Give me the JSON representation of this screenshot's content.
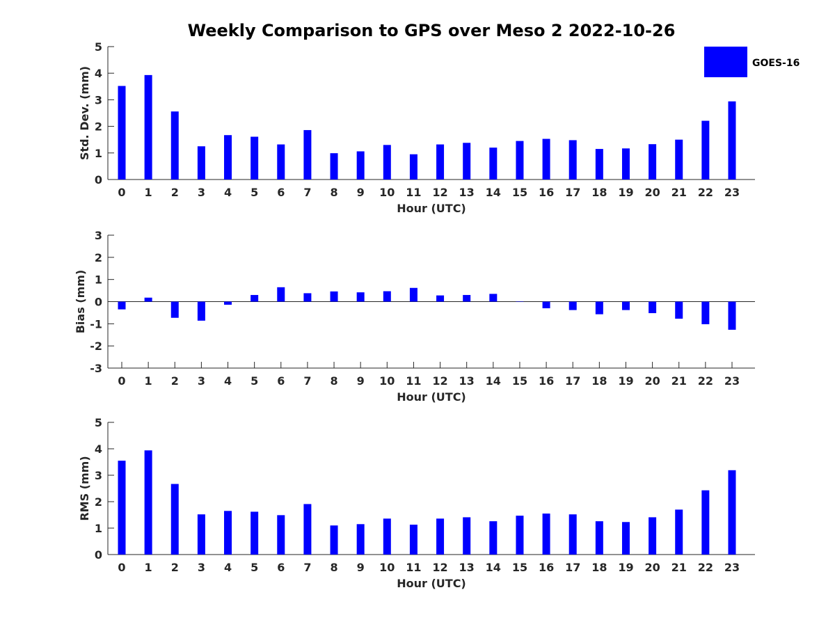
{
  "figure": {
    "title": "Weekly Comparison to GPS over Meso 2 2022-10-26"
  },
  "legend": {
    "label": "GOES-16",
    "placement": "top-right"
  },
  "colors": {
    "bar": "#0000ff",
    "axis": "#262626",
    "text": "#262626",
    "background": "#ffffff"
  },
  "chart_data": [
    {
      "type": "bar",
      "ylabel": "Std. Dev. (mm)",
      "xlabel": "Hour (UTC)",
      "ylim": [
        0,
        5
      ],
      "yticks": [
        "0",
        "1",
        "2",
        "3",
        "4",
        "5"
      ],
      "categories": [
        "0",
        "1",
        "2",
        "3",
        "4",
        "5",
        "6",
        "7",
        "8",
        "9",
        "10",
        "11",
        "12",
        "13",
        "14",
        "15",
        "16",
        "17",
        "18",
        "19",
        "20",
        "21",
        "22",
        "23"
      ],
      "series": [
        {
          "name": "GOES-16",
          "values": [
            3.52,
            3.93,
            2.56,
            1.25,
            1.67,
            1.61,
            1.32,
            1.86,
            0.99,
            1.06,
            1.3,
            0.95,
            1.32,
            1.38,
            1.2,
            1.45,
            1.53,
            1.48,
            1.15,
            1.17,
            1.33,
            1.5,
            2.21,
            2.94
          ]
        }
      ]
    },
    {
      "type": "bar",
      "ylabel": "Bias (mm)",
      "xlabel": "Hour (UTC)",
      "ylim": [
        -3,
        3
      ],
      "yticks": [
        "-3",
        "-2",
        "-1",
        "0",
        "1",
        "2",
        "3"
      ],
      "categories": [
        "0",
        "1",
        "2",
        "3",
        "4",
        "5",
        "6",
        "7",
        "8",
        "9",
        "10",
        "11",
        "12",
        "13",
        "14",
        "15",
        "16",
        "17",
        "18",
        "19",
        "20",
        "21",
        "22",
        "23"
      ],
      "series": [
        {
          "name": "GOES-16",
          "values": [
            -0.35,
            0.18,
            -0.73,
            -0.86,
            -0.14,
            0.3,
            0.65,
            0.38,
            0.46,
            0.42,
            0.47,
            0.62,
            0.28,
            0.3,
            0.35,
            0.0,
            -0.3,
            -0.38,
            -0.57,
            -0.38,
            -0.52,
            -0.77,
            -1.02,
            -1.27
          ]
        }
      ]
    },
    {
      "type": "bar",
      "ylabel": "RMS (mm)",
      "xlabel": "Hour (UTC)",
      "ylim": [
        0,
        5
      ],
      "yticks": [
        "0",
        "1",
        "2",
        "3",
        "4",
        "5"
      ],
      "categories": [
        "0",
        "1",
        "2",
        "3",
        "4",
        "5",
        "6",
        "7",
        "8",
        "9",
        "10",
        "11",
        "12",
        "13",
        "14",
        "15",
        "16",
        "17",
        "18",
        "19",
        "20",
        "21",
        "22",
        "23"
      ],
      "series": [
        {
          "name": "GOES-16",
          "values": [
            3.55,
            3.94,
            2.67,
            1.52,
            1.65,
            1.62,
            1.49,
            1.91,
            1.1,
            1.15,
            1.36,
            1.13,
            1.36,
            1.41,
            1.26,
            1.47,
            1.55,
            1.52,
            1.26,
            1.23,
            1.41,
            1.7,
            2.43,
            3.19
          ]
        }
      ]
    }
  ]
}
